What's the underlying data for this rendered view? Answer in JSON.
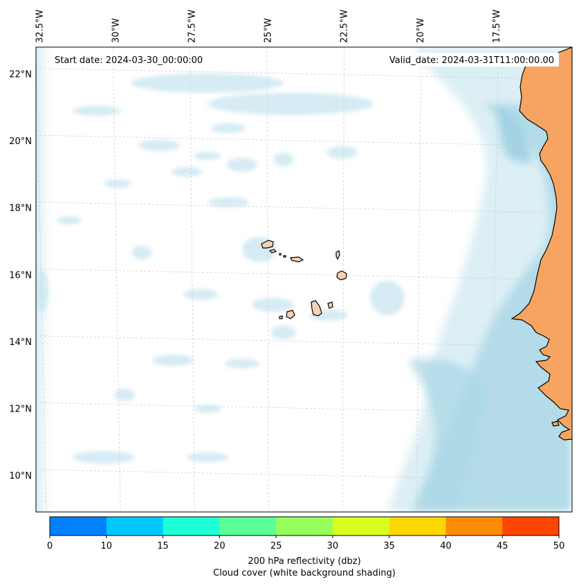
{
  "map": {
    "start_date_text": "Start date: 2024-03-30_00:00:00",
    "valid_date_text": "Valid_date: 2024-03-31T11:00:00.00",
    "lon_labels": [
      "32.5°W",
      "30°W",
      "27.5°W",
      "25°W",
      "22.5°W",
      "20°W",
      "17.5°W"
    ],
    "lon_values": [
      -32.5,
      -30,
      -27.5,
      -25,
      -22.5,
      -20,
      -17.5
    ],
    "lat_labels": [
      "22°N",
      "20°N",
      "18°N",
      "16°N",
      "14°N",
      "12°N",
      "10°N"
    ],
    "lat_values": [
      22,
      20,
      18,
      16,
      14,
      12,
      10
    ],
    "lon_range": [
      -32.6,
      -15.0
    ],
    "lat_range": [
      8.9,
      22.8
    ],
    "gridlines": true,
    "colors": {
      "land": "#f6a45f",
      "cloud": "#add8e6",
      "coast": "#000000",
      "grid": "#c8c8c8"
    }
  },
  "colorbar": {
    "label_line1": "200 hPa reflectivity (dbz)",
    "label_line2": "Cloud cover (white background shading)",
    "ticks": [
      "0",
      "10",
      "15",
      "20",
      "25",
      "30",
      "35",
      "40",
      "45",
      "50"
    ],
    "colors": [
      "#0080ff",
      "#00c8ff",
      "#1effd7",
      "#5aff96",
      "#96ff5a",
      "#d7ff1e",
      "#ffd700",
      "#ff8c00",
      "#ff4500"
    ]
  }
}
